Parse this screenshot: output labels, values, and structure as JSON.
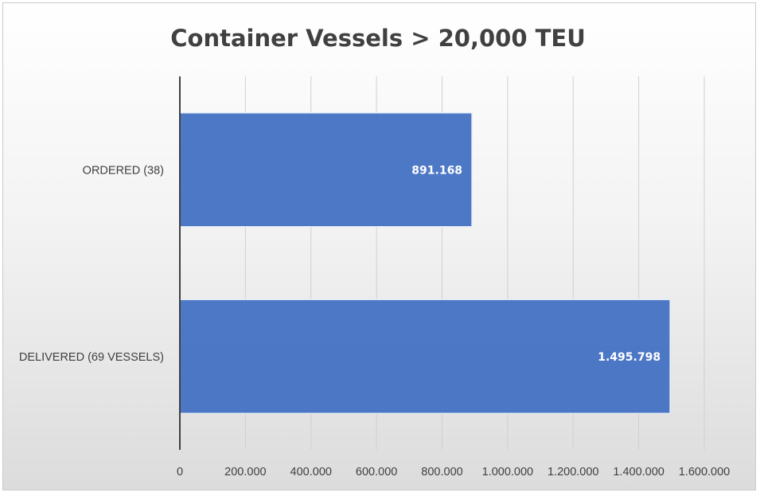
{
  "chart_data": {
    "type": "bar",
    "orientation": "horizontal",
    "title": "Container Vessels > 20,000 TEU",
    "categories": [
      "ORDERED (38)",
      "DELIVERED (69 VESSELS)"
    ],
    "values": [
      891168,
      1495798
    ],
    "data_labels": [
      "891.168",
      "1.495.798"
    ],
    "xlim": [
      0,
      1600000
    ],
    "x_ticks": [
      0,
      200000,
      400000,
      600000,
      800000,
      1000000,
      1200000,
      1400000,
      1600000
    ],
    "x_tick_labels": [
      "0",
      "200.000",
      "400.000",
      "600.000",
      "800.000",
      "1.000.000",
      "1.200.000",
      "1.400.000",
      "1.600.000"
    ],
    "grid": true,
    "legend": "none",
    "bar_color": "#4472c4"
  }
}
